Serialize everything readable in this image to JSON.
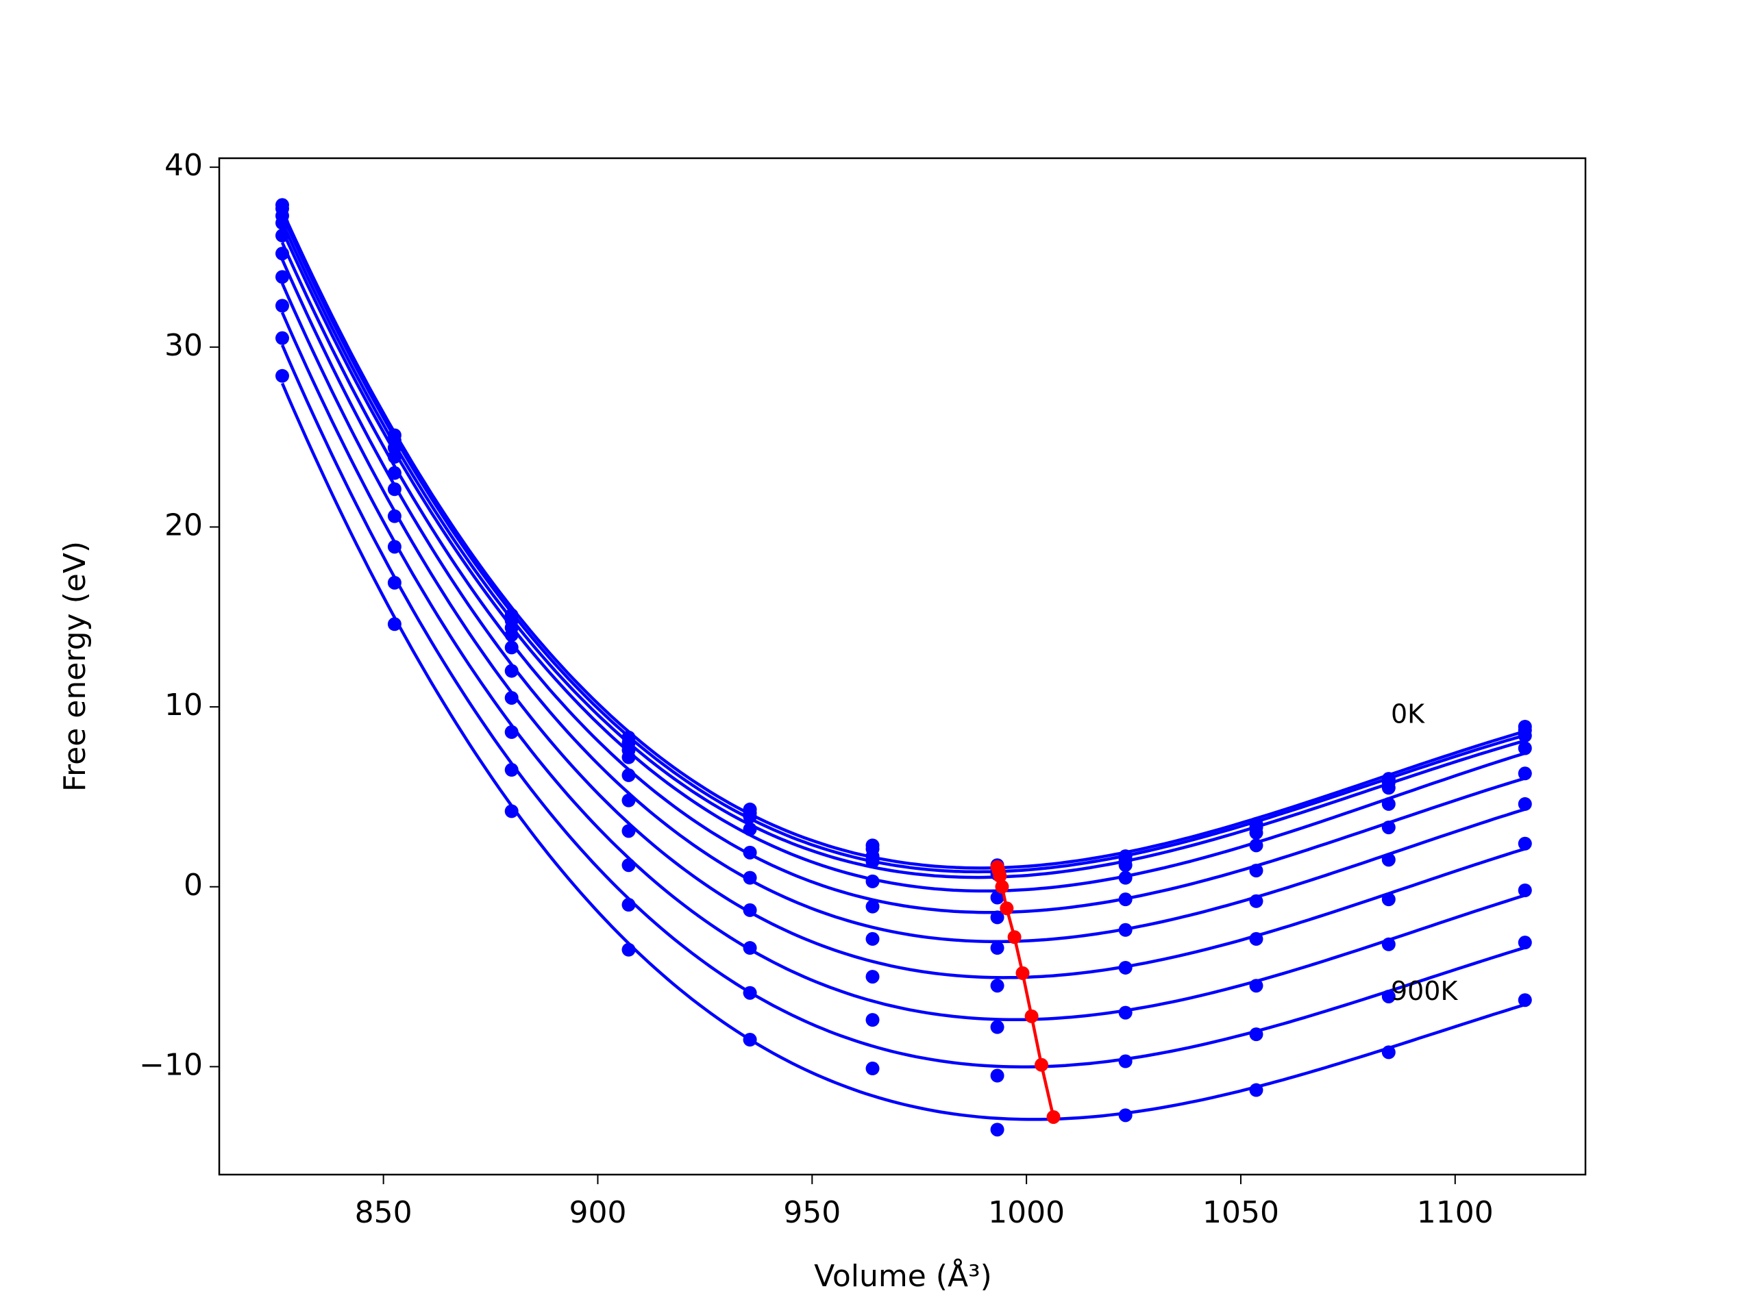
{
  "chart_data": {
    "type": "line",
    "xlabel": "Volume (Å³)",
    "ylabel": "Free energy (eV)",
    "x": [
      826.4,
      852.6,
      879.9,
      907.2,
      935.5,
      964.1,
      993.2,
      1023.1,
      1053.6,
      1084.5,
      1116.3
    ],
    "series": [
      {
        "color": "#0000ff",
        "values": [
          37.9,
          25.1,
          15.1,
          8.3,
          4.3,
          2.3,
          1.2,
          1.7,
          3.5,
          6.0,
          8.9
        ]
      },
      {
        "color": "#0000ff",
        "values": [
          37.7,
          24.8,
          14.8,
          8.0,
          4.1,
          2.1,
          1.0,
          1.5,
          3.3,
          5.8,
          8.7
        ]
      },
      {
        "color": "#0000ff",
        "values": [
          37.3,
          24.4,
          14.4,
          7.6,
          3.9,
          1.7,
          0.7,
          1.2,
          3.0,
          5.5,
          8.4
        ]
      },
      {
        "color": "#0000ff",
        "values": [
          36.9,
          23.9,
          14.0,
          7.2,
          3.2,
          1.4,
          -0.6,
          0.5,
          2.3,
          4.6,
          7.7
        ]
      },
      {
        "color": "#0000ff",
        "values": [
          36.2,
          23.0,
          13.3,
          6.2,
          1.9,
          0.3,
          -1.7,
          -0.7,
          0.9,
          3.3,
          6.3
        ]
      },
      {
        "color": "#0000ff",
        "values": [
          35.2,
          22.1,
          12.0,
          4.8,
          0.5,
          -1.1,
          -3.4,
          -2.4,
          -0.8,
          1.5,
          4.6
        ]
      },
      {
        "color": "#0000ff",
        "values": [
          33.9,
          20.6,
          10.5,
          3.1,
          -1.3,
          -2.9,
          -5.5,
          -4.5,
          -2.9,
          -0.7,
          2.4
        ]
      },
      {
        "color": "#0000ff",
        "values": [
          32.3,
          18.9,
          8.6,
          1.2,
          -3.4,
          -5.0,
          -7.8,
          -7.0,
          -5.5,
          -3.2,
          -0.2
        ]
      },
      {
        "color": "#0000ff",
        "values": [
          30.5,
          16.9,
          6.5,
          -1.0,
          -5.9,
          -7.4,
          -10.5,
          -9.7,
          -8.2,
          -6.1,
          -3.1
        ]
      },
      {
        "color": "#0000ff",
        "values": [
          28.4,
          14.6,
          4.2,
          -3.5,
          -8.5,
          -10.1,
          -13.5,
          -12.7,
          -11.3,
          -9.2,
          -6.3
        ]
      }
    ],
    "minima": {
      "color": "#ff0000",
      "x": [
        993.2,
        993.5,
        993.8,
        994.3,
        995.4,
        997.2,
        999.1,
        1001.2,
        1003.5,
        1006.3
      ],
      "values": [
        1.1,
        0.9,
        0.6,
        0.0,
        -1.2,
        -2.8,
        -4.8,
        -7.2,
        -9.9,
        -12.8
      ]
    },
    "annotations": [
      {
        "text": "0K",
        "x": 1085,
        "y": 9.5
      },
      {
        "text": "900K",
        "x": 1085,
        "y": -5.9
      }
    ],
    "xlim": [
      811.7,
      1130.4
    ],
    "ylim": [
      -16,
      40.5
    ],
    "xticks": [
      850,
      900,
      950,
      1000,
      1050,
      1100
    ],
    "yticks": [
      {
        "value": -10,
        "label": "−10"
      },
      0,
      10,
      20,
      30,
      40
    ],
    "grid": false
  }
}
